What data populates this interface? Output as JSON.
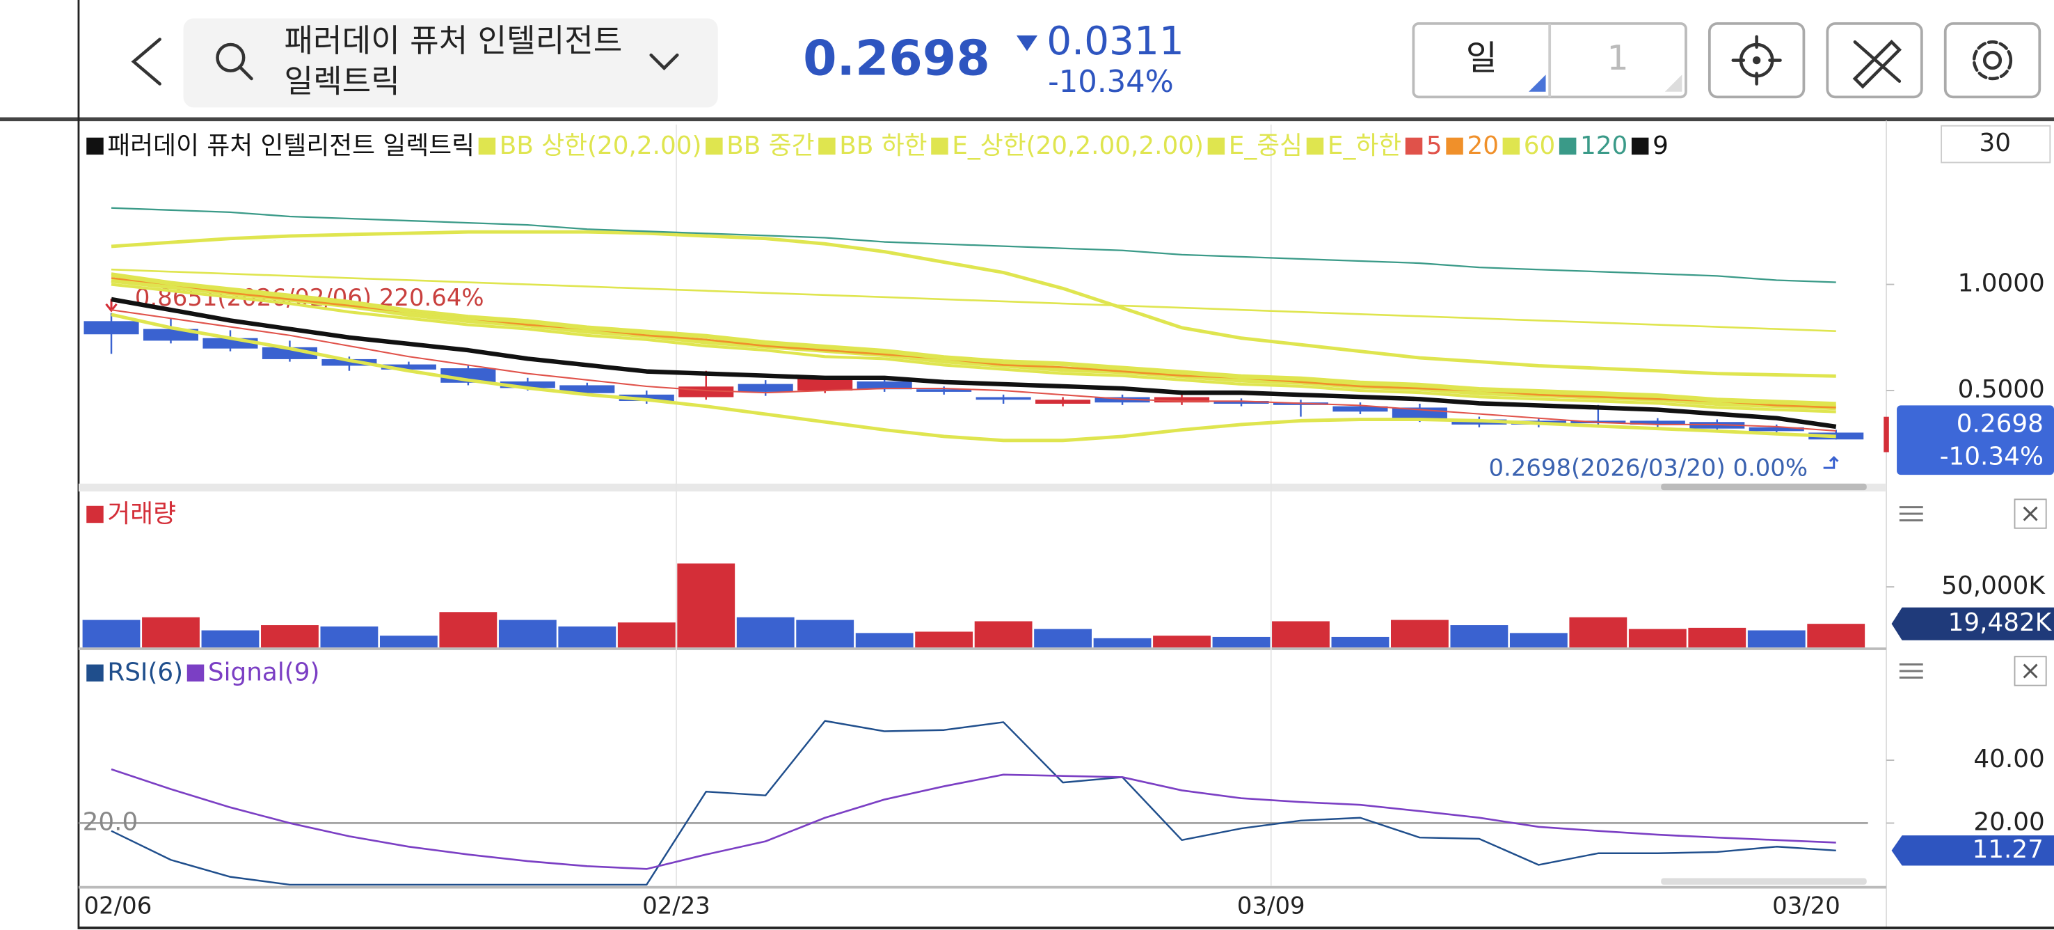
{
  "header": {
    "name_line1": "패러데이 퓨처 인텔리전트",
    "name_line2": "일렉트릭",
    "price": "0.2698",
    "change": "0.0311",
    "change_pct": "-10.34%",
    "period": "일",
    "count": "1"
  },
  "chart_data": [
    {
      "type": "candlestick",
      "name": "패러데이 퓨처 인텔리전트 일렉트릭",
      "name_color": "#111111",
      "up_color": "#d42e38",
      "down_color": "#3a62d0",
      "categories": [
        "02/06",
        null,
        null,
        null,
        null,
        null,
        null,
        null,
        null,
        null,
        "02/23",
        null,
        null,
        null,
        null,
        null,
        null,
        null,
        null,
        null,
        "03/09",
        null,
        null,
        null,
        null,
        null,
        null,
        null,
        null,
        "03/20"
      ],
      "open": [
        0.827,
        0.79,
        0.747,
        0.704,
        0.648,
        0.623,
        0.605,
        0.543,
        0.525,
        0.481,
        0.469,
        0.531,
        0.5,
        0.543,
        0.506,
        0.469,
        0.438,
        0.469,
        0.444,
        0.451,
        0.444,
        0.426,
        0.42,
        0.364,
        0.358,
        0.358,
        0.358,
        0.352,
        0.327,
        0.302
      ],
      "high": [
        0.8651,
        0.84,
        0.784,
        0.735,
        0.66,
        0.636,
        0.617,
        0.56,
        0.537,
        0.5,
        0.593,
        0.549,
        0.568,
        0.556,
        0.519,
        0.481,
        0.469,
        0.481,
        0.481,
        0.463,
        0.457,
        0.444,
        0.438,
        0.377,
        0.37,
        0.432,
        0.37,
        0.364,
        0.34,
        0.315
      ],
      "low": [
        0.673,
        0.722,
        0.685,
        0.636,
        0.593,
        0.586,
        0.525,
        0.5,
        0.475,
        0.438,
        0.457,
        0.475,
        0.488,
        0.494,
        0.481,
        0.438,
        0.426,
        0.432,
        0.432,
        0.426,
        0.377,
        0.389,
        0.352,
        0.327,
        0.327,
        0.333,
        0.327,
        0.309,
        0.296,
        0.2698
      ],
      "close": [
        0.765,
        0.735,
        0.698,
        0.648,
        0.617,
        0.599,
        0.537,
        0.512,
        0.488,
        0.451,
        0.519,
        0.494,
        0.556,
        0.506,
        0.494,
        0.457,
        0.457,
        0.444,
        0.469,
        0.438,
        0.432,
        0.401,
        0.364,
        0.34,
        0.34,
        0.346,
        0.34,
        0.321,
        0.309,
        0.2698
      ],
      "series": [
        {
          "name": "BB 상한(20,2.00)",
          "color": "#dfe54f",
          "values": [
            1.179,
            1.198,
            1.216,
            1.228,
            1.235,
            1.241,
            1.247,
            1.247,
            1.247,
            1.241,
            1.228,
            1.216,
            1.191,
            1.154,
            1.105,
            1.056,
            0.981,
            0.889,
            0.796,
            0.747,
            0.716,
            0.685,
            0.654,
            0.636,
            0.617,
            0.605,
            0.593,
            0.58,
            0.574,
            0.568
          ]
        },
        {
          "name": "BB 중간",
          "color": "#dfe54f",
          "values": [
            1.07,
            1.06,
            1.05,
            1.04,
            1.03,
            1.02,
            1.01,
            1.0,
            0.99,
            0.98,
            0.97,
            0.96,
            0.95,
            0.94,
            0.93,
            0.92,
            0.91,
            0.9,
            0.89,
            0.88,
            0.87,
            0.86,
            0.85,
            0.84,
            0.83,
            0.82,
            0.81,
            0.8,
            0.79,
            0.78
          ]
        },
        {
          "name": "BB 하한",
          "color": "#dfe54f",
          "values": [
            0.858,
            0.796,
            0.747,
            0.698,
            0.642,
            0.593,
            0.549,
            0.512,
            0.481,
            0.457,
            0.426,
            0.389,
            0.352,
            0.315,
            0.284,
            0.265,
            0.265,
            0.284,
            0.315,
            0.34,
            0.358,
            0.364,
            0.364,
            0.358,
            0.346,
            0.333,
            0.321,
            0.309,
            0.296,
            0.284
          ]
        },
        {
          "name": "E_상한(20,2.00,2.00)",
          "color": "#dfe54f",
          "values": [
            1.05,
            1.01,
            0.98,
            0.95,
            0.92,
            0.88,
            0.85,
            0.83,
            0.8,
            0.78,
            0.76,
            0.73,
            0.71,
            0.69,
            0.66,
            0.64,
            0.63,
            0.61,
            0.59,
            0.57,
            0.56,
            0.54,
            0.53,
            0.51,
            0.5,
            0.49,
            0.48,
            0.46,
            0.45,
            0.44
          ]
        },
        {
          "name": "E_중심",
          "color": "#dfe54f",
          "values": [
            1.02,
            0.99,
            0.96,
            0.93,
            0.9,
            0.86,
            0.83,
            0.81,
            0.78,
            0.76,
            0.73,
            0.71,
            0.69,
            0.67,
            0.64,
            0.62,
            0.6,
            0.59,
            0.57,
            0.55,
            0.54,
            0.52,
            0.51,
            0.49,
            0.48,
            0.47,
            0.46,
            0.44,
            0.43,
            0.42
          ]
        },
        {
          "name": "E_하한",
          "color": "#dfe54f",
          "values": [
            1.0,
            0.97,
            0.94,
            0.91,
            0.87,
            0.84,
            0.81,
            0.79,
            0.76,
            0.74,
            0.71,
            0.69,
            0.66,
            0.65,
            0.62,
            0.6,
            0.58,
            0.57,
            0.55,
            0.53,
            0.52,
            0.5,
            0.49,
            0.47,
            0.46,
            0.45,
            0.44,
            0.42,
            0.41,
            0.4
          ]
        },
        {
          "name": "5",
          "color": "#e0524a",
          "values": [
            0.88,
            0.84,
            0.8,
            0.76,
            0.71,
            0.66,
            0.62,
            0.58,
            0.55,
            0.52,
            0.5,
            0.49,
            0.5,
            0.51,
            0.51,
            0.5,
            0.48,
            0.46,
            0.45,
            0.45,
            0.44,
            0.43,
            0.41,
            0.39,
            0.37,
            0.35,
            0.34,
            0.34,
            0.33,
            0.31
          ]
        },
        {
          "name": "20",
          "color": "#f0902a",
          "values": [
            1.03,
            1.0,
            0.96,
            0.93,
            0.9,
            0.87,
            0.84,
            0.81,
            0.79,
            0.76,
            0.74,
            0.71,
            0.69,
            0.67,
            0.65,
            0.62,
            0.61,
            0.59,
            0.57,
            0.56,
            0.54,
            0.52,
            0.51,
            0.5,
            0.48,
            0.47,
            0.46,
            0.45,
            0.43,
            0.42
          ]
        },
        {
          "name": "60",
          "color": "#dfe54f",
          "values": [
            1.04,
            1.0,
            0.97,
            0.94,
            0.91,
            0.87,
            0.84,
            0.82,
            0.79,
            0.77,
            0.75,
            0.72,
            0.7,
            0.68,
            0.65,
            0.63,
            0.62,
            0.6,
            0.58,
            0.56,
            0.55,
            0.53,
            0.52,
            0.5,
            0.49,
            0.48,
            0.47,
            0.45,
            0.44,
            0.43
          ]
        },
        {
          "name": "120",
          "color": "#3a9a88",
          "values": [
            1.36,
            1.35,
            1.34,
            1.32,
            1.31,
            1.3,
            1.29,
            1.28,
            1.26,
            1.25,
            1.24,
            1.23,
            1.22,
            1.2,
            1.19,
            1.18,
            1.17,
            1.16,
            1.14,
            1.13,
            1.12,
            1.11,
            1.1,
            1.08,
            1.07,
            1.06,
            1.05,
            1.04,
            1.02,
            1.01
          ]
        },
        {
          "name": "9",
          "color": "#111111",
          "values": [
            0.93,
            0.88,
            0.83,
            0.79,
            0.75,
            0.72,
            0.69,
            0.65,
            0.62,
            0.59,
            0.58,
            0.57,
            0.56,
            0.56,
            0.54,
            0.53,
            0.52,
            0.51,
            0.49,
            0.49,
            0.48,
            0.47,
            0.46,
            0.44,
            0.43,
            0.42,
            0.41,
            0.39,
            0.37,
            0.33
          ]
        }
      ],
      "ylim": [
        0.0556,
        1.7531
      ],
      "yticks": [
        {
          "value": 1,
          "label": "1.0000"
        },
        {
          "value": 0.5,
          "label": "0.5000"
        }
      ],
      "tag": {
        "value": 0.2698,
        "label": "0.2698",
        "change": "-10.34%"
      },
      "tag_color": "#3d68d8",
      "annotations": [
        "0.8651(2026/02/06) 220.64%",
        "0.2698(2026/03/20) 0.00%"
      ],
      "period_box": "30"
    },
    {
      "type": "bar",
      "name": "거래량",
      "name_color": "#d42e38",
      "values": [
        22700,
        24900,
        14100,
        18400,
        17300,
        9700,
        29200,
        22700,
        17300,
        20600,
        69300,
        24900,
        22700,
        11900,
        13000,
        21600,
        15200,
        7600,
        9700,
        8700,
        21600,
        8700,
        22700,
        18400,
        11900,
        24900,
        15200,
        16200,
        14100,
        19482
      ],
      "colors": [
        "#3a62d0",
        "#d42e38",
        "#3a62d0",
        "#d42e38",
        "#3a62d0",
        "#3a62d0",
        "#d42e38",
        "#3a62d0",
        "#3a62d0",
        "#d42e38",
        "#d42e38",
        "#3a62d0",
        "#3a62d0",
        "#3a62d0",
        "#d42e38",
        "#d42e38",
        "#3a62d0",
        "#3a62d0",
        "#d42e38",
        "#3a62d0",
        "#d42e38",
        "#3a62d0",
        "#d42e38",
        "#3a62d0",
        "#3a62d0",
        "#d42e38",
        "#d42e38",
        "#d42e38",
        "#3a62d0",
        "#d42e38"
      ],
      "ylim": [
        0,
        125500
      ],
      "yticks": [
        {
          "value": 50000,
          "label": "50,000K"
        }
      ],
      "tag": {
        "value": 19482,
        "label": "19,482K"
      },
      "tag_color": "#1f3a7a"
    },
    {
      "type": "line",
      "series": [
        {
          "name": "RSI(6)",
          "color": "#1f4e8c",
          "values": [
            17.5,
            8.3,
            2.9,
            0.4,
            0.4,
            0.4,
            0.4,
            0.4,
            0.4,
            0.4,
            30.0,
            28.8,
            52.5,
            49.2,
            49.6,
            52.1,
            32.9,
            34.6,
            14.6,
            18.3,
            20.8,
            21.7,
            15.4,
            15.0,
            6.7,
            10.4,
            10.4,
            10.8,
            12.5,
            11.27
          ]
        },
        {
          "name": "Signal(9)",
          "color": "#7b3fc4",
          "values": [
            37.1,
            30.8,
            25.0,
            20.0,
            15.8,
            12.5,
            10.0,
            7.9,
            6.3,
            5.4,
            10.0,
            14.2,
            21.7,
            27.5,
            31.7,
            35.4,
            35.0,
            34.6,
            30.4,
            27.9,
            26.7,
            25.8,
            23.8,
            21.7,
            18.8,
            17.5,
            16.3,
            15.4,
            14.6,
            13.8
          ]
        }
      ],
      "ylim": [
        0,
        74.2
      ],
      "yticks": [
        {
          "value": 40,
          "label": "40.00"
        },
        {
          "value": 20,
          "label": "20.00"
        }
      ],
      "reference": {
        "value": 20,
        "label": "20.0"
      },
      "tag": {
        "value": 11.27,
        "label": "11.27"
      },
      "tag_color": "#2e55c0"
    }
  ]
}
